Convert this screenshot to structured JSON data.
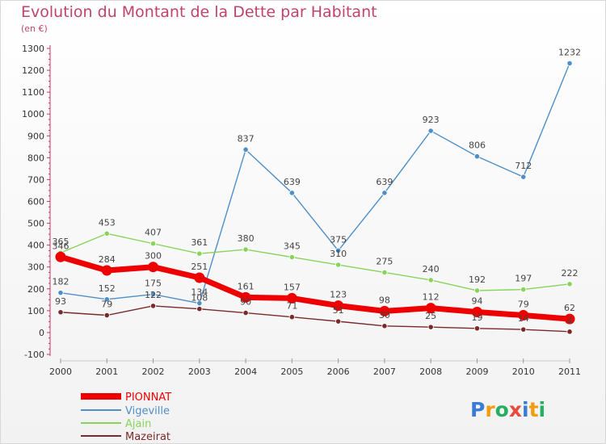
{
  "header": {
    "title": "Evolution du Montant de la Dette par Habitant",
    "subtitle": "(en €)"
  },
  "logo": {
    "letters": [
      "P",
      "r",
      "o",
      "x",
      "i",
      "t",
      "i"
    ],
    "colors": [
      "#3a7bd5",
      "#f39c12",
      "#27ae60",
      "#e74c3c",
      "#3a7bd5",
      "#f39c12",
      "#27ae60"
    ]
  },
  "chart_data": {
    "type": "line",
    "x": [
      "2000",
      "2001",
      "2002",
      "2003",
      "2004",
      "2005",
      "2006",
      "2007",
      "2008",
      "2009",
      "2010",
      "2011"
    ],
    "ylim": [
      -100,
      1300
    ],
    "yticks": [
      -100,
      0,
      100,
      200,
      300,
      400,
      500,
      600,
      700,
      800,
      900,
      1000,
      1100,
      1200,
      1300
    ],
    "grid": false,
    "legend_position": "bottom-left",
    "series": [
      {
        "name": "PIONNAT",
        "color": "#ee0000",
        "values": [
          346,
          284,
          300,
          251,
          161,
          157,
          123,
          98,
          112,
          94,
          79,
          62
        ]
      },
      {
        "name": "Vigeville",
        "color": "#4f8fc8",
        "values": [
          182,
          152,
          175,
          134,
          837,
          639,
          375,
          639,
          923,
          806,
          712,
          1232
        ]
      },
      {
        "name": "Ajain",
        "color": "#88d45a",
        "values": [
          365,
          453,
          407,
          361,
          380,
          345,
          310,
          275,
          240,
          192,
          197,
          222
        ]
      },
      {
        "name": "Mazeirat",
        "color": "#7a2a2a",
        "values": [
          93,
          79,
          122,
          108,
          90,
          71,
          51,
          30,
          25,
          19,
          14,
          4
        ]
      }
    ]
  }
}
